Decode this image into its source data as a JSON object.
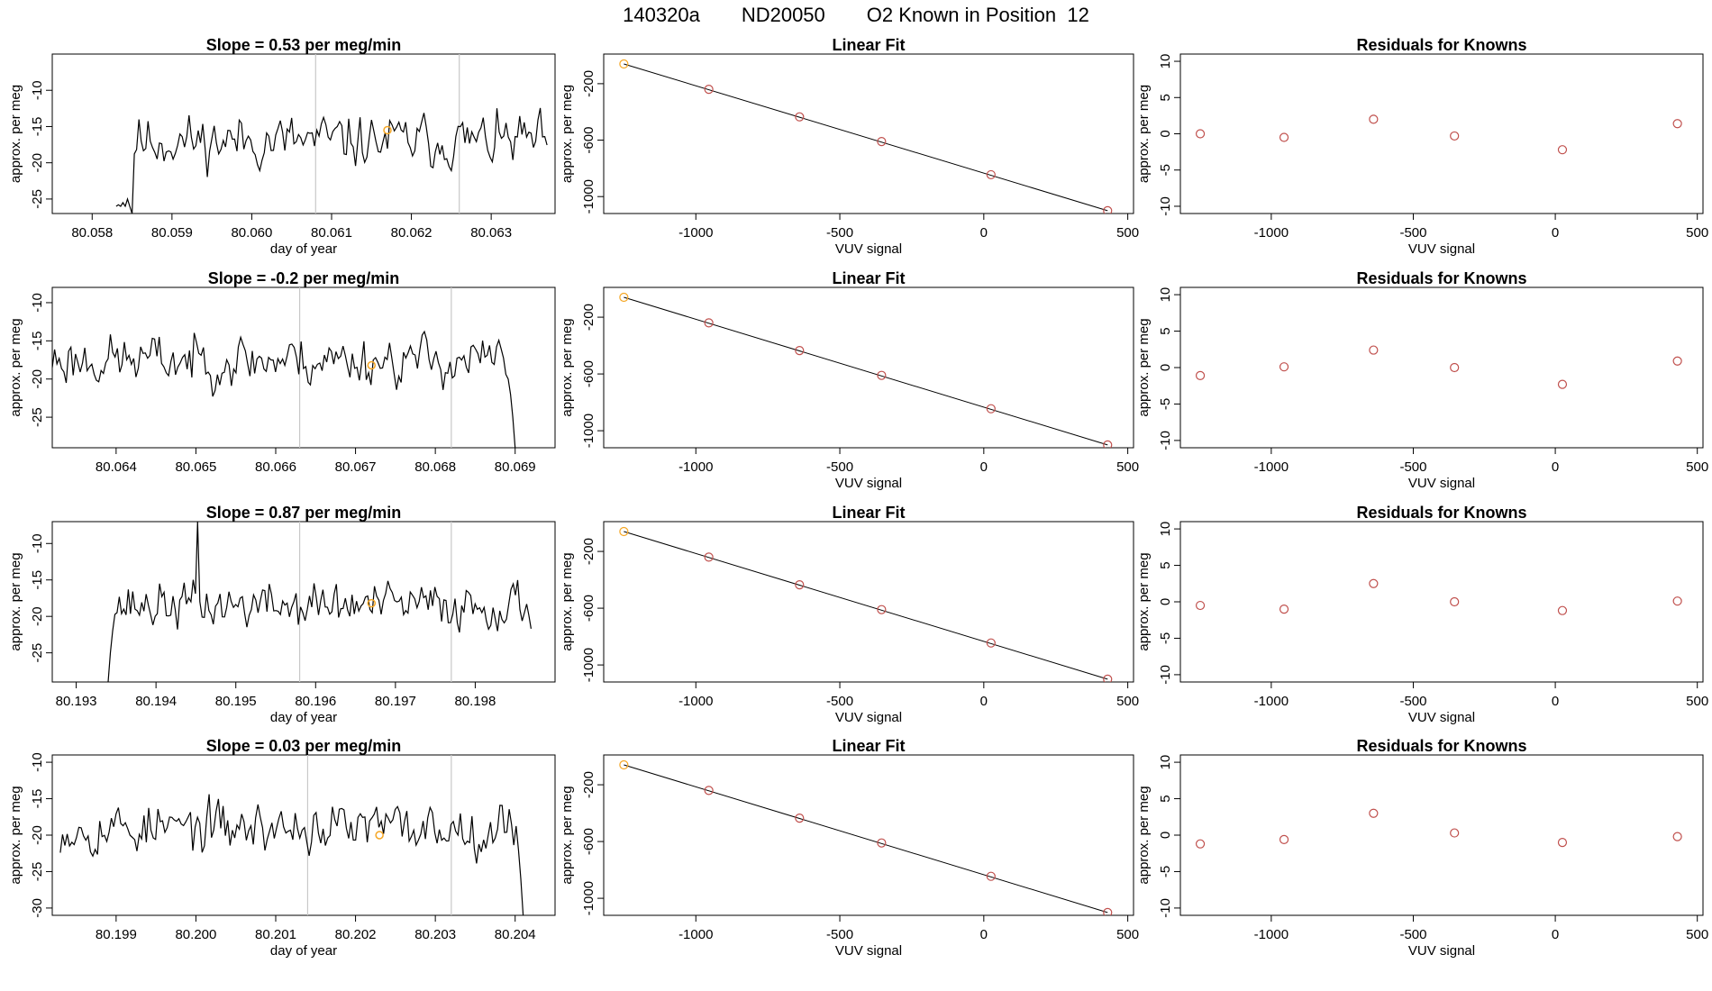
{
  "header": {
    "run_id": "140320a",
    "tank_id": "ND20050",
    "description": "O2 Known in Position  12"
  },
  "colors": {
    "trace": "#000000",
    "fit_line": "#000000",
    "known_points": "#c0504d",
    "highlight": "#f5a623",
    "marker_lines": "#c8c8c8",
    "frame": "#000000"
  },
  "chart_data": [
    {
      "type": "line",
      "row": 1,
      "panel": "time-series",
      "title": "Slope =  0.53  per meg/min",
      "xlabel": "day of year",
      "ylabel": "approx. per meg",
      "xlim": [
        80.0575,
        80.0638
      ],
      "ylim": [
        -27,
        -5
      ],
      "xticks": [
        80.058,
        80.059,
        80.06,
        80.061,
        80.062,
        80.063
      ],
      "xtick_labels": [
        "80.058",
        "80.059",
        "80.060",
        "80.061",
        "80.062",
        "80.063"
      ],
      "yticks": [
        -25,
        -20,
        -15,
        -10
      ],
      "ytick_labels": [
        "-25",
        "-20",
        "-15",
        "-10"
      ],
      "markers_x": [
        80.0608,
        80.0626
      ],
      "highlight": {
        "x": 80.0617,
        "y": -15.5
      },
      "x_start": 80.0583,
      "x_end": 80.0637,
      "n_points": 190,
      "seed": 11,
      "mean": -17.0,
      "sd": 2.6,
      "initial": [
        -26,
        -25.8,
        -26,
        -25.5,
        -26,
        -25,
        -26,
        -27
      ]
    },
    {
      "type": "scatter",
      "row": 1,
      "panel": "linear-fit",
      "title": "Linear Fit",
      "xlabel": "VUV signal",
      "ylabel": "approx. per meg",
      "xlim": [
        -1320,
        520
      ],
      "ylim": [
        -1120,
        10
      ],
      "xticks": [
        -1000,
        -500,
        0,
        500
      ],
      "xtick_labels": [
        "-1000",
        "-500",
        "0",
        "500"
      ],
      "yticks": [
        -1000,
        -600,
        -200
      ],
      "ytick_labels": [
        "-1000",
        "-600",
        "-200"
      ],
      "x": [
        -1250,
        -955,
        -640,
        -355,
        25,
        430
      ],
      "y": [
        -60,
        -240,
        -435,
        -610,
        -845,
        -1100
      ],
      "fit_x": [
        -1250,
        430
      ],
      "fit_y": [
        -60,
        -1100
      ]
    },
    {
      "type": "scatter",
      "row": 1,
      "panel": "residuals",
      "title": "Residuals for Knowns",
      "xlabel": "VUV signal",
      "ylabel": "approx. per meg",
      "xlim": [
        -1320,
        520
      ],
      "ylim": [
        -11,
        11
      ],
      "xticks": [
        -1000,
        -500,
        0,
        500
      ],
      "xtick_labels": [
        "-1000",
        "-500",
        "0",
        "500"
      ],
      "yticks": [
        -10,
        -5,
        0,
        5,
        10
      ],
      "ytick_labels": [
        "-10",
        "-5",
        "0",
        "5",
        "10"
      ],
      "x": [
        -1250,
        -955,
        -640,
        -355,
        25,
        430
      ],
      "y": [
        0.0,
        -0.5,
        2.0,
        -0.3,
        -2.2,
        1.4
      ]
    },
    {
      "type": "line",
      "row": 2,
      "panel": "time-series",
      "title": "Slope =  -0.2  per meg/min",
      "xlabel": "",
      "ylabel": "approx. per meg",
      "xlim": [
        80.0632,
        80.0695
      ],
      "ylim": [
        -29,
        -8
      ],
      "xticks": [
        80.064,
        80.065,
        80.066,
        80.067,
        80.068,
        80.069
      ],
      "xtick_labels": [
        "80.064",
        "80.065",
        "80.066",
        "80.067",
        "80.068",
        "80.069"
      ],
      "yticks": [
        -25,
        -20,
        -15,
        -10
      ],
      "ytick_labels": [
        "-25",
        "-20",
        "-15",
        "-10"
      ],
      "markers_x": [
        80.0663,
        80.0682
      ],
      "highlight": {
        "x": 80.0672,
        "y": -18.2
      },
      "x_start": 80.0632,
      "x_end": 80.069,
      "n_points": 200,
      "seed": 23,
      "mean": -17.5,
      "sd": 2.4,
      "final": [
        -20,
        -22,
        -25,
        -29
      ]
    },
    {
      "type": "scatter",
      "row": 2,
      "panel": "linear-fit",
      "title": "Linear Fit",
      "xlabel": "VUV signal",
      "ylabel": "approx. per meg",
      "xlim": [
        -1320,
        520
      ],
      "ylim": [
        -1120,
        10
      ],
      "xticks": [
        -1000,
        -500,
        0,
        500
      ],
      "xtick_labels": [
        "-1000",
        "-500",
        "0",
        "500"
      ],
      "yticks": [
        -1000,
        -600,
        -200
      ],
      "ytick_labels": [
        "-1000",
        "-600",
        "-200"
      ],
      "x": [
        -1250,
        -955,
        -640,
        -355,
        25,
        430
      ],
      "y": [
        -60,
        -240,
        -435,
        -610,
        -845,
        -1100
      ],
      "fit_x": [
        -1250,
        430
      ],
      "fit_y": [
        -60,
        -1100
      ]
    },
    {
      "type": "scatter",
      "row": 2,
      "panel": "residuals",
      "title": "Residuals for Knowns",
      "xlabel": "VUV signal",
      "ylabel": "approx. per meg",
      "xlim": [
        -1320,
        520
      ],
      "ylim": [
        -11,
        11
      ],
      "xticks": [
        -1000,
        -500,
        0,
        500
      ],
      "xtick_labels": [
        "-1000",
        "-500",
        "0",
        "500"
      ],
      "yticks": [
        -10,
        -5,
        0,
        5,
        10
      ],
      "ytick_labels": [
        "-10",
        "-5",
        "0",
        "5",
        "10"
      ],
      "x": [
        -1250,
        -955,
        -640,
        -355,
        25,
        430
      ],
      "y": [
        -1.1,
        0.1,
        2.4,
        0.0,
        -2.3,
        0.9
      ]
    },
    {
      "type": "line",
      "row": 3,
      "panel": "time-series",
      "title": "Slope =  0.87  per meg/min",
      "xlabel": "day of year",
      "ylabel": "approx. per meg",
      "xlim": [
        80.1927,
        80.199
      ],
      "ylim": [
        -29,
        -7
      ],
      "xticks": [
        80.193,
        80.194,
        80.195,
        80.196,
        80.197,
        80.198
      ],
      "xtick_labels": [
        "80.193",
        "80.194",
        "80.195",
        "80.196",
        "80.197",
        "80.198"
      ],
      "yticks": [
        -25,
        -20,
        -15,
        -10
      ],
      "ytick_labels": [
        "-25",
        "-20",
        "-15",
        "-10"
      ],
      "markers_x": [
        80.1958,
        80.1977
      ],
      "highlight": {
        "x": 80.1967,
        "y": -18.2
      },
      "x_start": 80.1934,
      "x_end": 80.1987,
      "n_points": 190,
      "seed": 37,
      "mean": -18.5,
      "sd": 2.3,
      "initial": [
        -29,
        -25,
        -22
      ],
      "spike": {
        "index": 40,
        "value": -7
      }
    },
    {
      "type": "scatter",
      "row": 3,
      "panel": "linear-fit",
      "title": "Linear Fit",
      "xlabel": "VUV signal",
      "ylabel": "approx. per meg",
      "xlim": [
        -1320,
        520
      ],
      "ylim": [
        -1120,
        10
      ],
      "xticks": [
        -1000,
        -500,
        0,
        500
      ],
      "xtick_labels": [
        "-1000",
        "-500",
        "0",
        "500"
      ],
      "yticks": [
        -1000,
        -600,
        -200
      ],
      "ytick_labels": [
        "-1000",
        "-600",
        "-200"
      ],
      "x": [
        -1250,
        -955,
        -640,
        -355,
        25,
        430
      ],
      "y": [
        -60,
        -240,
        -435,
        -610,
        -845,
        -1100
      ],
      "fit_x": [
        -1250,
        430
      ],
      "fit_y": [
        -60,
        -1100
      ]
    },
    {
      "type": "scatter",
      "row": 3,
      "panel": "residuals",
      "title": "Residuals for Knowns",
      "xlabel": "VUV signal",
      "ylabel": "approx. per meg",
      "xlim": [
        -1320,
        520
      ],
      "ylim": [
        -11,
        11
      ],
      "xticks": [
        -1000,
        -500,
        0,
        500
      ],
      "xtick_labels": [
        "-1000",
        "-500",
        "0",
        "500"
      ],
      "yticks": [
        -10,
        -5,
        0,
        5,
        10
      ],
      "ytick_labels": [
        "-10",
        "-5",
        "0",
        "5",
        "10"
      ],
      "x": [
        -1250,
        -955,
        -640,
        -355,
        25,
        430
      ],
      "y": [
        -0.5,
        -1.0,
        2.5,
        0.0,
        -1.2,
        0.1
      ]
    },
    {
      "type": "line",
      "row": 4,
      "panel": "time-series",
      "title": "Slope =  0.03  per meg/min",
      "xlabel": "day of year",
      "ylabel": "approx. per meg",
      "xlim": [
        80.1982,
        80.2045
      ],
      "ylim": [
        -31,
        -9
      ],
      "xticks": [
        80.199,
        80.2,
        80.201,
        80.202,
        80.203,
        80.204
      ],
      "xtick_labels": [
        "80.199",
        "80.200",
        "80.201",
        "80.202",
        "80.203",
        "80.204"
      ],
      "yticks": [
        -30,
        -25,
        -20,
        -15,
        -10
      ],
      "ytick_labels": [
        "-30",
        "-25",
        "-20",
        "-15",
        "-10"
      ],
      "markers_x": [
        80.2014,
        80.2032
      ],
      "highlight": {
        "x": 80.2023,
        "y": -20.0
      },
      "x_start": 80.1983,
      "x_end": 80.2041,
      "n_points": 200,
      "seed": 53,
      "mean": -19.0,
      "sd": 2.5,
      "final": [
        -22,
        -26,
        -31
      ]
    },
    {
      "type": "scatter",
      "row": 4,
      "panel": "linear-fit",
      "title": "Linear Fit",
      "xlabel": "VUV signal",
      "ylabel": "approx. per meg",
      "xlim": [
        -1320,
        520
      ],
      "ylim": [
        -1120,
        10
      ],
      "xticks": [
        -1000,
        -500,
        0,
        500
      ],
      "xtick_labels": [
        "-1000",
        "-500",
        "0",
        "500"
      ],
      "yticks": [
        -1000,
        -600,
        -200
      ],
      "ytick_labels": [
        "-1000",
        "-600",
        "-200"
      ],
      "x": [
        -1250,
        -955,
        -640,
        -355,
        25,
        430
      ],
      "y": [
        -60,
        -240,
        -435,
        -610,
        -845,
        -1100
      ],
      "fit_x": [
        -1250,
        430
      ],
      "fit_y": [
        -60,
        -1100
      ]
    },
    {
      "type": "scatter",
      "row": 4,
      "panel": "residuals",
      "title": "Residuals for Knowns",
      "xlabel": "VUV signal",
      "ylabel": "approx. per meg",
      "xlim": [
        -1320,
        520
      ],
      "ylim": [
        -11,
        11
      ],
      "xticks": [
        -1000,
        -500,
        0,
        500
      ],
      "xtick_labels": [
        "-1000",
        "-500",
        "0",
        "500"
      ],
      "yticks": [
        -10,
        -5,
        0,
        5,
        10
      ],
      "ytick_labels": [
        "-10",
        "-5",
        "0",
        "5",
        "10"
      ],
      "x": [
        -1250,
        -955,
        -640,
        -355,
        25,
        430
      ],
      "y": [
        -1.2,
        -0.6,
        3.0,
        0.3,
        -1.0,
        -0.2
      ]
    }
  ]
}
